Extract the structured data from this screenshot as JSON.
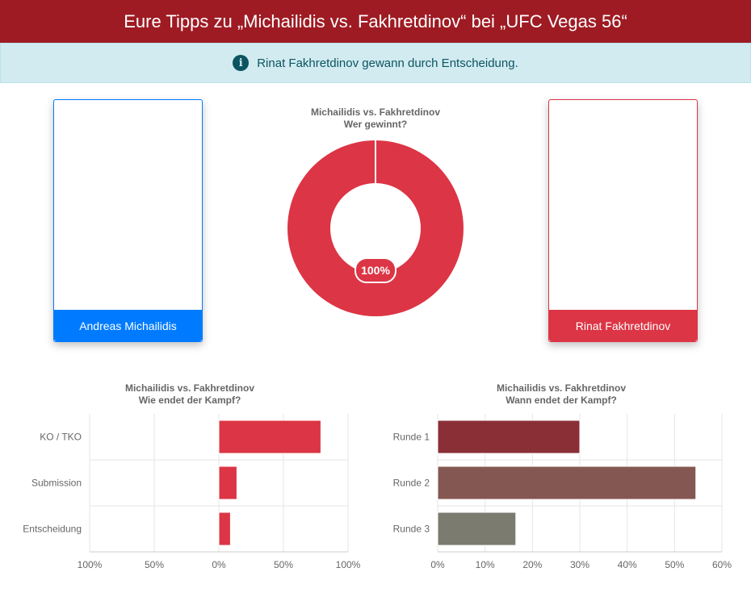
{
  "header": {
    "title": "Eure Tipps zu „Michailidis vs. Fakhretdinov“ bei „UFC Vegas 56“"
  },
  "alert": {
    "text": "Rinat Fakhretdinov gewann durch Entscheidung.",
    "icon": "info-circle-icon"
  },
  "fighters": [
    {
      "name": "Andreas Michailidis",
      "color": "#007bff"
    },
    {
      "name": "Rinat Fakhretdinov",
      "color": "#dc3545"
    }
  ],
  "chart_data": [
    {
      "type": "pie",
      "title": "Michailidis vs. Fakhretdinov",
      "subtitle": "Wer gewinnt?",
      "categories": [
        "Andreas Michailidis",
        "Rinat Fakhretdinov"
      ],
      "values": [
        0,
        100
      ],
      "colors": [
        "#007bff",
        "#dc3545"
      ],
      "data_label": "100%"
    },
    {
      "type": "bar",
      "orientation": "horizontal",
      "title": "Michailidis vs. Fakhretdinov",
      "subtitle": "Wie endet der Kampf?",
      "categories": [
        "KO / TKO",
        "Submission",
        "Entscheidung"
      ],
      "series": [
        {
          "values": [
            0,
            0,
            0
          ],
          "color": "#007bff"
        },
        {
          "values": [
            79,
            14,
            9
          ],
          "color": "#dc3545"
        }
      ],
      "xlim": [
        -100,
        100
      ],
      "xticks": [
        "100%",
        "50%",
        "0%",
        "50%",
        "100%"
      ]
    },
    {
      "type": "bar",
      "orientation": "horizontal",
      "title": "Michailidis vs. Fakhretdinov",
      "subtitle": "Wann endet der Kampf?",
      "categories": [
        "Runde 1",
        "Runde 2",
        "Runde 3"
      ],
      "values": [
        30,
        54.5,
        16.5
      ],
      "colors": [
        "#8b2f37",
        "#855752",
        "#7b7b70"
      ],
      "xlim": [
        0,
        60
      ],
      "xticks": [
        "0%",
        "10%",
        "20%",
        "30%",
        "40%",
        "50%",
        "60%"
      ]
    }
  ]
}
